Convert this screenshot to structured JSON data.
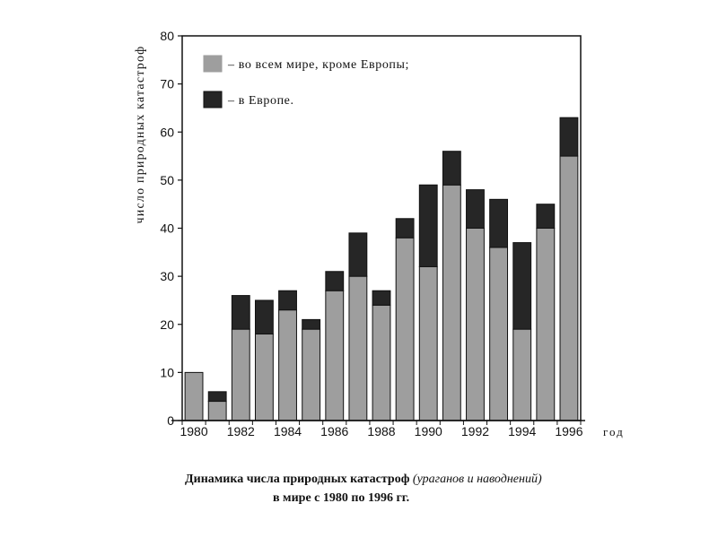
{
  "chart_data": {
    "type": "bar",
    "stacked": true,
    "x": [
      1980,
      1981,
      1982,
      1983,
      1984,
      1985,
      1986,
      1987,
      1988,
      1989,
      1990,
      1991,
      1992,
      1993,
      1994,
      1995,
      1996
    ],
    "x_tick_labels": [
      "1980",
      "1982",
      "1984",
      "1986",
      "1988",
      "1990",
      "1992",
      "1994",
      "1996"
    ],
    "series": [
      {
        "name": "– во всем мире, кроме Европы;",
        "color": "#9e9e9e",
        "values": [
          10,
          4,
          19,
          18,
          23,
          19,
          27,
          30,
          24,
          38,
          32,
          49,
          40,
          36,
          19,
          40,
          55
        ]
      },
      {
        "name": "– в Европе.",
        "color": "#262626",
        "values": [
          0,
          2,
          7,
          7,
          4,
          2,
          4,
          9,
          3,
          4,
          17,
          7,
          8,
          10,
          18,
          5,
          8
        ]
      }
    ],
    "xlabel": "год",
    "ylabel": "число природных катастроф",
    "ylim": [
      0,
      80
    ],
    "y_ticks": [
      0,
      10,
      20,
      30,
      40,
      50,
      60,
      70,
      80
    ],
    "legend_position": "top-left",
    "grid": false
  },
  "caption": {
    "line1_bold": "Динамика числа природных катастроф",
    "line1_italic": "(ураганов и наводнений)",
    "line2": "в мире с 1980 по 1996 гг."
  }
}
